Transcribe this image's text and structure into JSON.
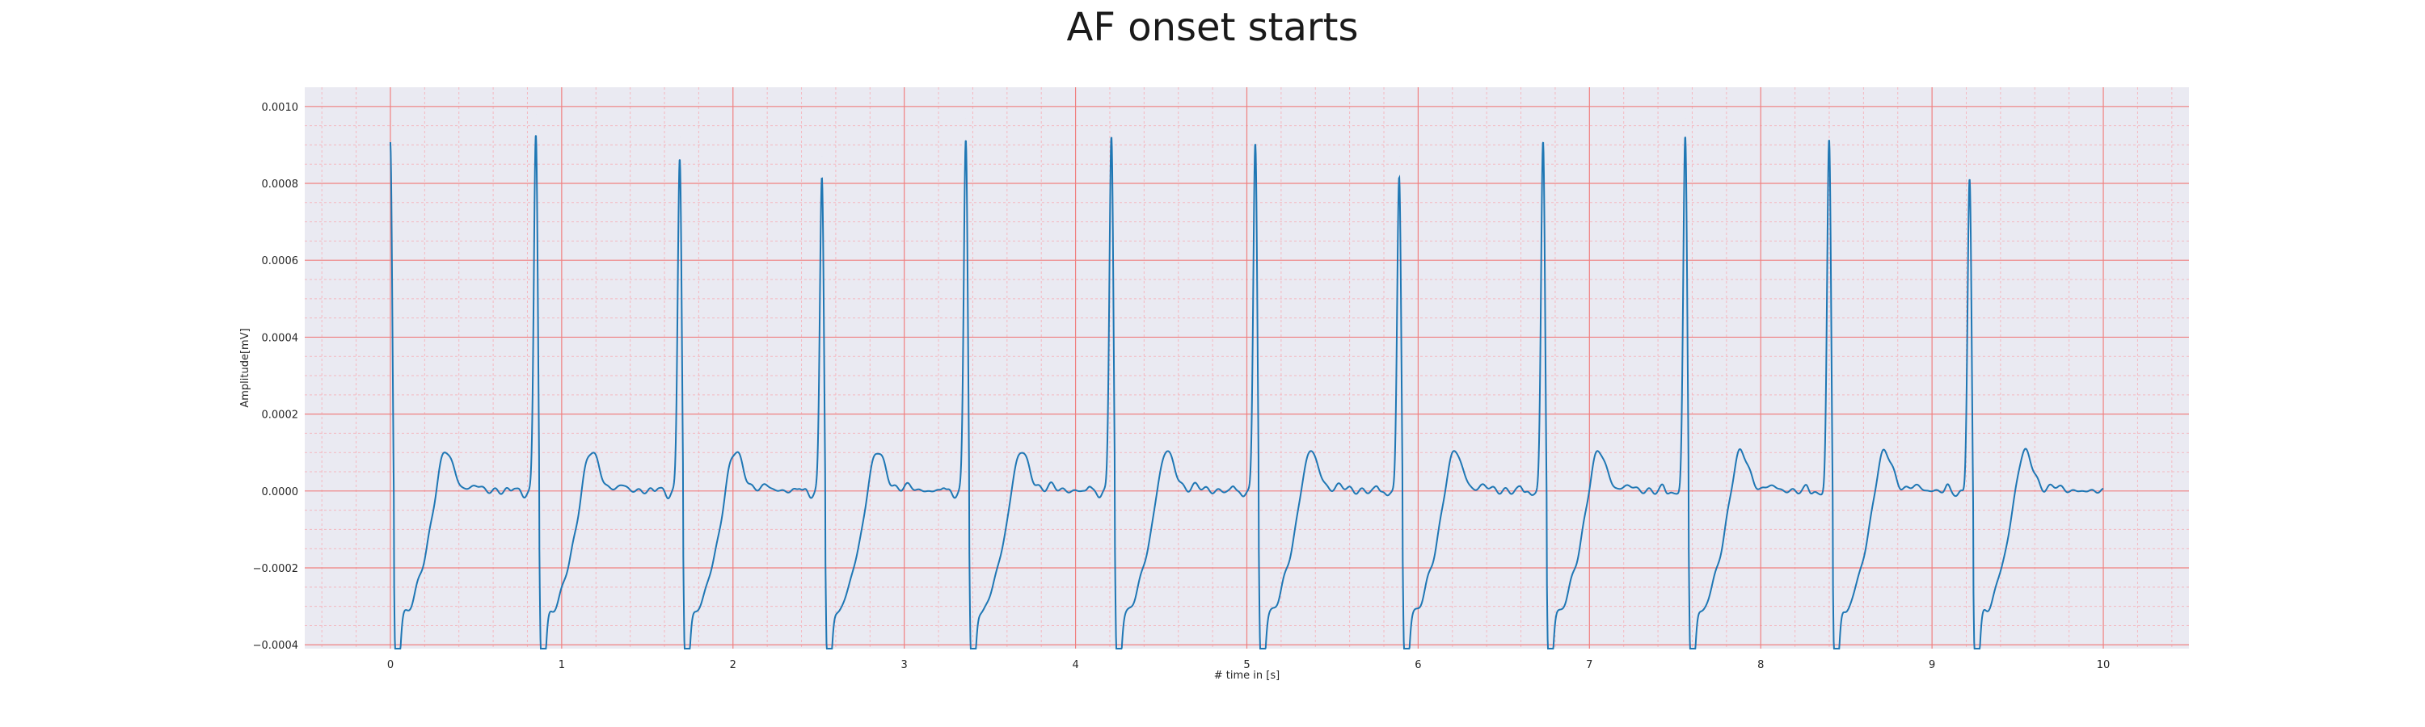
{
  "chart_data": {
    "type": "line",
    "title": "AF onset starts",
    "xlabel": "# time in [s]",
    "ylabel": "Amplitude[mV]",
    "xlim": [
      -0.5,
      10.5
    ],
    "ylim": [
      -0.00041,
      0.00105
    ],
    "x_ticks": [
      0,
      1,
      2,
      3,
      4,
      5,
      6,
      7,
      8,
      9,
      10
    ],
    "x_tick_labels": [
      "0",
      "1",
      "2",
      "3",
      "4",
      "5",
      "6",
      "7",
      "8",
      "9",
      "10"
    ],
    "y_ticks": [
      -0.0004,
      -0.0002,
      0.0,
      0.0002,
      0.0004,
      0.0006,
      0.0008,
      0.001
    ],
    "y_tick_labels": [
      "−0.0004",
      "−0.0002",
      "0.0000",
      "0.0002",
      "0.0004",
      "0.0006",
      "0.0008",
      "0.0010"
    ],
    "grid": true,
    "colors": {
      "background": "#eaeaf2",
      "major_grid": "#f08080",
      "minor_grid": "#f4b8c0",
      "line": "#1f77b4"
    },
    "series": [
      {
        "beats": [
          {
            "r_time": 0.0,
            "r_amp": 0.00096
          },
          {
            "r_time": 0.85,
            "r_amp": 0.00098
          },
          {
            "r_time": 1.69,
            "r_amp": 0.00092
          },
          {
            "r_time": 2.52,
            "r_amp": 0.00087
          },
          {
            "r_time": 3.36,
            "r_amp": 0.00097
          },
          {
            "r_time": 4.21,
            "r_amp": 0.00098
          },
          {
            "r_time": 5.05,
            "r_amp": 0.00096
          },
          {
            "r_time": 5.89,
            "r_amp": 0.00087
          },
          {
            "r_time": 6.73,
            "r_amp": 0.00096
          },
          {
            "r_time": 7.56,
            "r_amp": 0.00097
          },
          {
            "r_time": 8.4,
            "r_amp": 0.00096
          },
          {
            "r_time": 9.22,
            "r_amp": 0.00086
          }
        ],
        "s_trough_amp": -0.00035,
        "t_wave_amp": 0.00011,
        "end_time": 10.0
      }
    ]
  }
}
